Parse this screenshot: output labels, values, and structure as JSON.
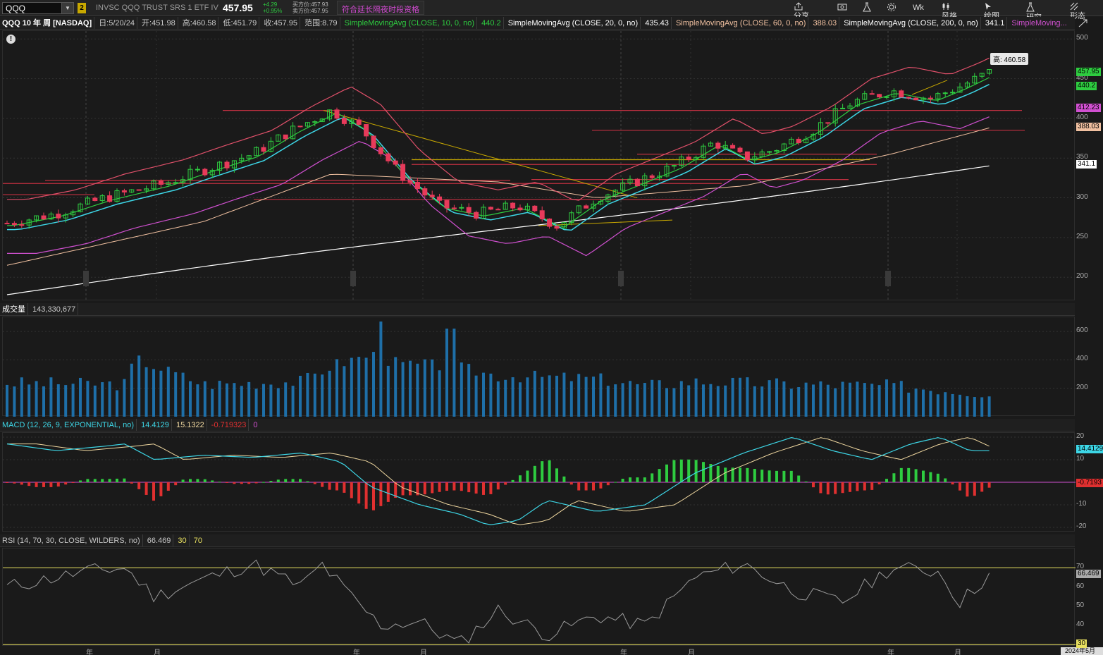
{
  "toolbar": {
    "symbol": "QQQ",
    "link_group": "2",
    "description": "INVSC QQQ TRUST SRS 1 ETF IV",
    "last": "457.95",
    "change": "+4.29",
    "change_pct": "+0.95%",
    "ask": "买方价:457.93",
    "bid": "卖方价:457.95",
    "ext_hours": "符合延长隔夜时段资格",
    "share": "分享",
    "period": "Wk",
    "style": "风格",
    "drawings": "绘图",
    "studies": "研究",
    "patterns": "形态"
  },
  "price_header": {
    "title": "QQQ 10 年 周 [NASDAQ]",
    "date": "日:5/20/24",
    "open": "开:451.98",
    "high": "高:460.58",
    "low": "低:451.79",
    "close": "收:457.95",
    "range": "范围:8.79",
    "sma10_label": "SimpleMovingAvg (CLOSE, 10, 0, no)",
    "sma10_val": "440.2",
    "sma20_label": "SimpleMovingAvg (CLOSE, 20, 0, no)",
    "sma20_val": "435.43",
    "sma60_label": "SimpleMovingAvg (CLOSE, 60, 0, no)",
    "sma60_val": "388.03",
    "sma200_label": "SimpleMovingAvg (CLOSE, 200, 0, no)",
    "sma200_val": "341.1",
    "more_label": "SimpleMoving..."
  },
  "price_axis": {
    "ticks": [
      "500",
      "450",
      "400",
      "350",
      "300",
      "250",
      "200"
    ],
    "tags": [
      {
        "text": "457.95",
        "color": "#2ecc40"
      },
      {
        "text": "440.2",
        "color": "#2ecc40"
      },
      {
        "text": "412.23",
        "color": "#d050d0"
      },
      {
        "text": "388.03",
        "color": "#f0c0a0"
      },
      {
        "text": "341.1",
        "color": "#ffffff"
      }
    ],
    "high_callout": "高: 460.58"
  },
  "volume_header": {
    "label": "成交量",
    "value": "143,330,677"
  },
  "volume_axis": {
    "ticks": [
      "600",
      "400",
      "200"
    ]
  },
  "macd_header": {
    "label": "MACD (12, 26, 9, EXPONENTIAL, no)",
    "value": "14.4129",
    "avg": "15.1322",
    "diff": "-0.719323",
    "zero": "0"
  },
  "macd_axis": {
    "ticks": [
      "20",
      "10",
      "-10",
      "-20"
    ],
    "tags": [
      {
        "text": "14.4129",
        "color": "#3dd6e6"
      },
      {
        "text": "-0.7193",
        "color": "#e03030"
      }
    ]
  },
  "rsi_header": {
    "label": "RSI (14, 70, 30, CLOSE, WILDERS, no)",
    "value": "66.469",
    "ob": "30",
    "os": "70"
  },
  "rsi_axis": {
    "ticks": [
      "70",
      "60",
      "50",
      "40"
    ],
    "tags": [
      {
        "text": "66.469",
        "color": "#aaaaaa"
      },
      {
        "text": "30",
        "color": "#e8e060"
      }
    ]
  },
  "x_axis": {
    "labels": [
      "年",
      "月",
      "年",
      "月",
      "年",
      "月",
      "年",
      "月"
    ],
    "partial_label": "2024年5月"
  },
  "colors": {
    "up": "#2ecc40",
    "down": "#e83a5a",
    "sma10": "#2ecc40",
    "sma20": "#3dd6e6",
    "sma60": "#f0c0a0",
    "sma200": "#ffffff",
    "bollinger": "#e0506a",
    "lower": "#d050d0",
    "volume": "#1e6fa8"
  },
  "chart_data": {
    "type": "candlestick",
    "title": "QQQ 10 年 周 [NASDAQ]",
    "ylim": [
      170,
      510
    ],
    "last_close": 457.95,
    "series": [
      {
        "name": "SimpleMovingAvg (CLOSE, 10, 0, no)",
        "last": 440.2
      },
      {
        "name": "SimpleMovingAvg (CLOSE, 20, 0, no)",
        "last": 435.43
      },
      {
        "name": "SimpleMovingAvg (CLOSE, 60, 0, no)",
        "last": 388.03
      },
      {
        "name": "SimpleMovingAvg (CLOSE, 200, 0, no)",
        "last": 341.1
      }
    ]
  }
}
